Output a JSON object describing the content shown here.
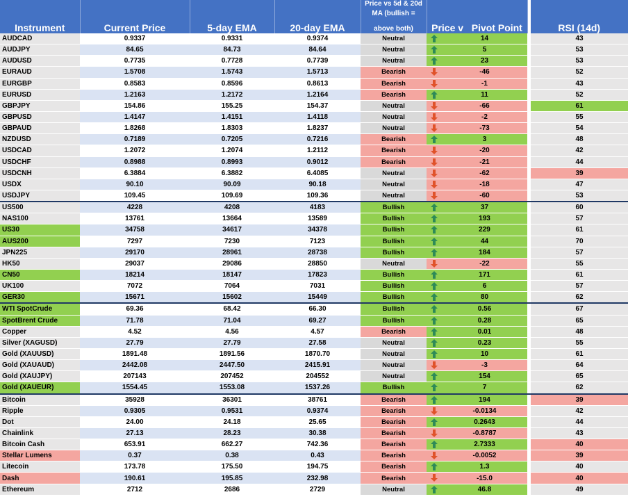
{
  "headers": {
    "instrument": "Instrument",
    "current_price": "Current Price",
    "ema5": "5-day EMA",
    "ema20": "20-day EMA",
    "trend_line1": "Price vs 5d & 20d",
    "trend_line2": "MA (bullish =",
    "trend_line3": "above both)",
    "price_vs": "Price v",
    "pivot_point": "Pivot Point",
    "rsi": "RSI (14d)"
  },
  "colors": {
    "header_blue": "#4472c4",
    "bullish_green": "#92d050",
    "bearish_red": "#f4a6a0",
    "neutral_grey": "#d9d9d9",
    "up_arrow": "#2e8b57",
    "down_arrow": "#e0522a"
  },
  "rows": [
    {
      "instrument": "AUDCAD",
      "price": "0.9337",
      "ema5": "0.9331",
      "ema20": "0.9374",
      "trend": "Neutral",
      "dir": "up",
      "pivot": "14",
      "rsi": "43"
    },
    {
      "instrument": "AUDJPY",
      "price": "84.65",
      "ema5": "84.73",
      "ema20": "84.64",
      "trend": "Neutral",
      "dir": "up",
      "pivot": "5",
      "rsi": "53"
    },
    {
      "instrument": "AUDUSD",
      "price": "0.7735",
      "ema5": "0.7728",
      "ema20": "0.7739",
      "trend": "Neutral",
      "dir": "up",
      "pivot": "23",
      "rsi": "53"
    },
    {
      "instrument": "EURAUD",
      "price": "1.5708",
      "ema5": "1.5743",
      "ema20": "1.5713",
      "trend": "Bearish",
      "dir": "down",
      "pivot": "-46",
      "rsi": "52"
    },
    {
      "instrument": "EURGBP",
      "price": "0.8583",
      "ema5": "0.8596",
      "ema20": "0.8613",
      "trend": "Bearish",
      "dir": "down",
      "pivot": "-1",
      "rsi": "43"
    },
    {
      "instrument": "EURUSD",
      "price": "1.2163",
      "ema5": "1.2172",
      "ema20": "1.2164",
      "trend": "Bearish",
      "dir": "up",
      "pivot": "11",
      "rsi": "52"
    },
    {
      "instrument": "GBPJPY",
      "price": "154.86",
      "ema5": "155.25",
      "ema20": "154.37",
      "trend": "Neutral",
      "dir": "down",
      "pivot": "-66",
      "rsi": "61",
      "rsi_hl": "bull"
    },
    {
      "instrument": "GBPUSD",
      "price": "1.4147",
      "ema5": "1.4151",
      "ema20": "1.4118",
      "trend": "Neutral",
      "dir": "down",
      "pivot": "-2",
      "rsi": "55"
    },
    {
      "instrument": "GBPAUD",
      "price": "1.8268",
      "ema5": "1.8303",
      "ema20": "1.8237",
      "trend": "Neutral",
      "dir": "down",
      "pivot": "-73",
      "rsi": "54"
    },
    {
      "instrument": "NZDUSD",
      "price": "0.7189",
      "ema5": "0.7205",
      "ema20": "0.7216",
      "trend": "Bearish",
      "dir": "up",
      "pivot": "3",
      "rsi": "48"
    },
    {
      "instrument": "USDCAD",
      "price": "1.2072",
      "ema5": "1.2074",
      "ema20": "1.2112",
      "trend": "Bearish",
      "dir": "down",
      "pivot": "-20",
      "rsi": "42"
    },
    {
      "instrument": "USDCHF",
      "price": "0.8988",
      "ema5": "0.8993",
      "ema20": "0.9012",
      "trend": "Bearish",
      "dir": "down",
      "pivot": "-21",
      "rsi": "44"
    },
    {
      "instrument": "USDCNH",
      "price": "6.3884",
      "ema5": "6.3882",
      "ema20": "6.4085",
      "trend": "Neutral",
      "dir": "down",
      "pivot": "-62",
      "rsi": "39",
      "rsi_hl": "bear"
    },
    {
      "instrument": "USDX",
      "price": "90.10",
      "ema5": "90.09",
      "ema20": "90.18",
      "trend": "Neutral",
      "dir": "down",
      "pivot": "-18",
      "rsi": "47"
    },
    {
      "instrument": "USDJPY",
      "price": "109.45",
      "ema5": "109.69",
      "ema20": "109.36",
      "trend": "Neutral",
      "dir": "down",
      "pivot": "-60",
      "rsi": "53"
    },
    {
      "instrument": "US500",
      "price": "4228",
      "ema5": "4208",
      "ema20": "4183",
      "trend": "Bullish",
      "dir": "up",
      "pivot": "37",
      "rsi": "60",
      "sep": true
    },
    {
      "instrument": "NAS100",
      "price": "13761",
      "ema5": "13664",
      "ema20": "13589",
      "trend": "Bullish",
      "dir": "up",
      "pivot": "193",
      "rsi": "57"
    },
    {
      "instrument": "US30",
      "price": "34758",
      "ema5": "34617",
      "ema20": "34378",
      "trend": "Bullish",
      "dir": "up",
      "pivot": "229",
      "rsi": "61",
      "inst_hl": "bull"
    },
    {
      "instrument": "AUS200",
      "price": "7297",
      "ema5": "7230",
      "ema20": "7123",
      "trend": "Bullish",
      "dir": "up",
      "pivot": "44",
      "rsi": "70",
      "inst_hl": "bull"
    },
    {
      "instrument": "JPN225",
      "price": "29170",
      "ema5": "28961",
      "ema20": "28738",
      "trend": "Bullish",
      "dir": "up",
      "pivot": "184",
      "rsi": "57"
    },
    {
      "instrument": "HK50",
      "price": "29037",
      "ema5": "29086",
      "ema20": "28850",
      "trend": "Neutral",
      "dir": "down",
      "pivot": "-22",
      "rsi": "55"
    },
    {
      "instrument": "CN50",
      "price": "18214",
      "ema5": "18147",
      "ema20": "17823",
      "trend": "Bullish",
      "dir": "up",
      "pivot": "171",
      "rsi": "61",
      "inst_hl": "bull"
    },
    {
      "instrument": "UK100",
      "price": "7072",
      "ema5": "7064",
      "ema20": "7031",
      "trend": "Bullish",
      "dir": "up",
      "pivot": "6",
      "rsi": "57"
    },
    {
      "instrument": "GER30",
      "price": "15671",
      "ema5": "15602",
      "ema20": "15449",
      "trend": "Bullish",
      "dir": "up",
      "pivot": "80",
      "rsi": "62",
      "inst_hl": "bull"
    },
    {
      "instrument": "WTI SpotCrude",
      "price": "69.36",
      "ema5": "68.42",
      "ema20": "66.30",
      "trend": "Bullish",
      "dir": "up",
      "pivot": "0.56",
      "rsi": "67",
      "inst_hl": "bull",
      "sep": true
    },
    {
      "instrument": "SpotBrent Crude",
      "price": "71.78",
      "ema5": "71.04",
      "ema20": "69.27",
      "trend": "Bullish",
      "dir": "up",
      "pivot": "0.28",
      "rsi": "65",
      "inst_hl": "bull"
    },
    {
      "instrument": "Copper",
      "price": "4.52",
      "ema5": "4.56",
      "ema20": "4.57",
      "trend": "Bearish",
      "dir": "up",
      "pivot": "0.01",
      "rsi": "48"
    },
    {
      "instrument": "Silver (XAGUSD)",
      "price": "27.79",
      "ema5": "27.79",
      "ema20": "27.58",
      "trend": "Neutral",
      "dir": "up",
      "pivot": "0.23",
      "rsi": "55"
    },
    {
      "instrument": "Gold (XAUUSD)",
      "price": "1891.48",
      "ema5": "1891.56",
      "ema20": "1870.70",
      "trend": "Neutral",
      "dir": "up",
      "pivot": "10",
      "rsi": "61"
    },
    {
      "instrument": "Gold (XAUAUD)",
      "price": "2442.08",
      "ema5": "2447.50",
      "ema20": "2415.91",
      "trend": "Neutral",
      "dir": "down",
      "pivot": "-3",
      "rsi": "64"
    },
    {
      "instrument": "Gold (XAUJPY)",
      "price": "207143",
      "ema5": "207452",
      "ema20": "204552",
      "trend": "Neutral",
      "dir": "up",
      "pivot": "154",
      "rsi": "65"
    },
    {
      "instrument": "Gold (XAUEUR)",
      "price": "1554.45",
      "ema5": "1553.08",
      "ema20": "1537.26",
      "trend": "Bullish",
      "dir": "up",
      "pivot": "7",
      "rsi": "62",
      "inst_hl": "bull"
    },
    {
      "instrument": "Bitcoin",
      "price": "35928",
      "ema5": "36301",
      "ema20": "38761",
      "trend": "Bearish",
      "dir": "up",
      "pivot": "194",
      "rsi": "39",
      "rsi_hl": "bear",
      "sep": true
    },
    {
      "instrument": "Ripple",
      "price": "0.9305",
      "ema5": "0.9531",
      "ema20": "0.9374",
      "trend": "Bearish",
      "dir": "down",
      "pivot": "-0.0134",
      "rsi": "42"
    },
    {
      "instrument": "Dot",
      "price": "24.00",
      "ema5": "24.18",
      "ema20": "25.65",
      "trend": "Bearish",
      "dir": "up",
      "pivot": "0.2643",
      "rsi": "44"
    },
    {
      "instrument": "Chainlink",
      "price": "27.13",
      "ema5": "28.23",
      "ema20": "30.38",
      "trend": "Bearish",
      "dir": "down",
      "pivot": "-0.8787",
      "rsi": "43"
    },
    {
      "instrument": "Bitcoin Cash",
      "price": "653.91",
      "ema5": "662.27",
      "ema20": "742.36",
      "trend": "Bearish",
      "dir": "up",
      "pivot": "2.7333",
      "rsi": "40",
      "rsi_hl": "bear"
    },
    {
      "instrument": "Stellar Lumens",
      "price": "0.37",
      "ema5": "0.38",
      "ema20": "0.43",
      "trend": "Bearish",
      "dir": "down",
      "pivot": "-0.0052",
      "rsi": "39",
      "inst_hl": "bear",
      "rsi_hl": "bear"
    },
    {
      "instrument": "Litecoin",
      "price": "173.78",
      "ema5": "175.50",
      "ema20": "194.75",
      "trend": "Bearish",
      "dir": "up",
      "pivot": "1.3",
      "rsi": "40"
    },
    {
      "instrument": "Dash",
      "price": "190.61",
      "ema5": "195.85",
      "ema20": "232.98",
      "trend": "Bearish",
      "dir": "down",
      "pivot": "-15.0",
      "rsi": "40",
      "inst_hl": "bear",
      "rsi_hl": "bear"
    },
    {
      "instrument": "Ethereum",
      "price": "2712",
      "ema5": "2686",
      "ema20": "2729",
      "trend": "Neutral",
      "dir": "up",
      "pivot": "46.8",
      "rsi": "49"
    }
  ]
}
